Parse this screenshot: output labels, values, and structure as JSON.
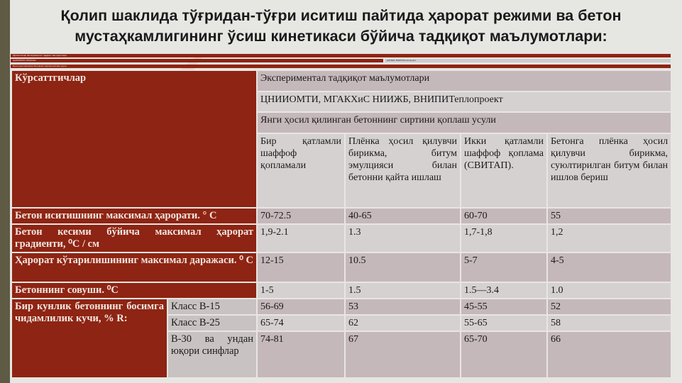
{
  "title": "Қолип шаклида  тўғридан-тўғри иситиш пайтида ҳарорат режими ва бетон мустаҳкамлигининг ўсиш кинетикаси бўйича тадқиқот маълумотлари:",
  "thin_rows": [
    "Кўрсаткичлар Экспериментал тадқиқот маълумотлари",
    "ЦНИИОМТИ, МГАКХиС",
    "НИИЖБ, ВНИПИТеплопроект",
    "Янги ҳосил қилинган бетоннинг сиртини қоплаш усули"
  ],
  "table": {
    "indicators": "Кўрсаттгичлар",
    "experimental": "Экспериментал тадқиқот маълумотлари",
    "sources": "ЦНИИОМТИ, МГАКХиС   НИИЖБ, ВНИПИТеплопроект",
    "method": "Янги ҳосил қилинган бетоннинг сиртини қоплаш усули",
    "methods": [
      "Бир қатламли шаффоф қопламали",
      "Плёнка ҳосил қилувчи бирикма, битум эмулцияси билан бетонни қайта ишлаш",
      "Икки қатламли шаффоф қоплама (СВИТАП).",
      "Бетонга плёнка ҳосил қилувчи бирикма, суюлтирилган битум билан ишлов бериш"
    ],
    "rows": [
      {
        "label": "Бетон иситишнинг максимал  ҳарорати. ° С",
        "values": [
          "70-72.5",
          "40-65",
          "60-70",
          "55"
        ]
      },
      {
        "label": "Бетон кесими бўйича максимал ҳарорат градиенти, ⁰С / см",
        "values": [
          "1,9-2.1",
          "1.3",
          "1,7-1,8",
          "1,2"
        ]
      },
      {
        "label": "Ҳарорат кўтарилишининг максимал даражаси. ⁰ С",
        "values": [
          "12-15",
          "10.5",
          "5-7",
          "4-5"
        ]
      },
      {
        "label": "Бетоннинг совуши. ⁰С",
        "values": [
          "1-5",
          "1.5",
          "1.5—3.4",
          "1.0"
        ]
      }
    ],
    "strength_label": "Бир кунлик бетоннинг босимга чидамлилик кучи, % R:",
    "strength_rows": [
      {
        "class": "Класс В-15",
        "values": [
          "56-69",
          "53",
          "45-55",
          "52"
        ]
      },
      {
        "class": "Класс В-25",
        "values": [
          "65-74",
          "62",
          "55-65",
          "58"
        ]
      },
      {
        "class": "В-30 ва ундан юқори синфлар",
        "values": [
          "74-81",
          "67",
          "65-70",
          "66"
        ]
      }
    ]
  },
  "colors": {
    "header": "#8e2413",
    "cell_dark": "#c5b8ba",
    "cell_light": "#d6d1d1"
  }
}
